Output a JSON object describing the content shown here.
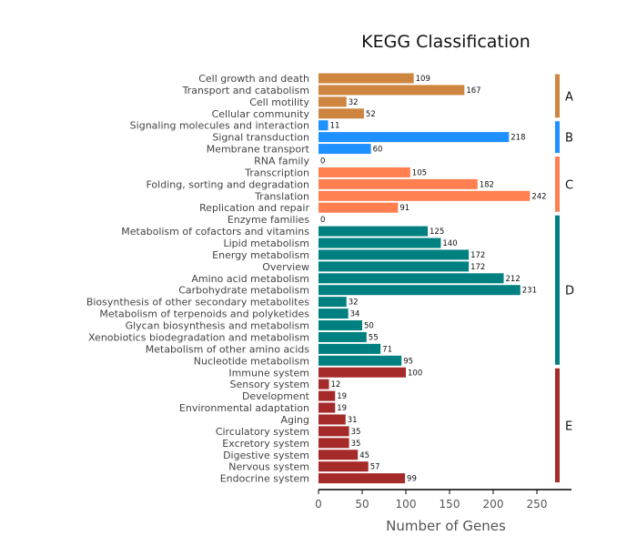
{
  "chart_data": {
    "type": "bar",
    "orientation": "horizontal",
    "title": "KEGG Classification",
    "xlabel": "Number of Genes",
    "ylabel": "",
    "xlim": [
      0,
      280
    ],
    "xticks": [
      0,
      50,
      100,
      150,
      200,
      250
    ],
    "grid": false,
    "groups": [
      {
        "name": "A",
        "color": "#CD853F",
        "categories": [
          "Cell growth and death",
          "Transport and catabolism",
          "Cell motility",
          "Cellular community"
        ],
        "values": [
          109,
          167,
          32,
          52
        ]
      },
      {
        "name": "B",
        "color": "#1E90FF",
        "categories": [
          "Signaling molecules and interaction",
          "Signal transduction",
          "Membrane transport"
        ],
        "values": [
          11,
          218,
          60
        ]
      },
      {
        "name": "C",
        "color": "#FF7F50",
        "categories": [
          "RNA family",
          "Transcription",
          "Folding, sorting and degradation",
          "Translation",
          "Replication and repair"
        ],
        "values": [
          0,
          105,
          182,
          242,
          91
        ]
      },
      {
        "name": "D",
        "color": "#008080",
        "categories": [
          "Enzyme families",
          "Metabolism of cofactors and vitamins",
          "Lipid metabolism",
          "Energy metabolism",
          "Overview",
          "Amino acid metabolism",
          "Carbohydrate metabolism",
          "Biosynthesis of other secondary metabolites",
          "Metabolism of terpenoids and polyketides",
          "Glycan biosynthesis and metabolism",
          "Xenobiotics biodegradation and metabolism",
          "Metabolism of other amino acids",
          "Nucleotide metabolism"
        ],
        "values": [
          0,
          125,
          140,
          172,
          172,
          212,
          231,
          32,
          34,
          50,
          55,
          71,
          95
        ]
      },
      {
        "name": "E",
        "color": "#A52A2A",
        "categories": [
          "Immune system",
          "Sensory system",
          "Development",
          "Environmental adaptation",
          "Aging",
          "Circulatory system",
          "Excretory system",
          "Digestive system",
          "Nervous system",
          "Endocrine system"
        ],
        "values": [
          100,
          12,
          19,
          19,
          31,
          35,
          35,
          45,
          57,
          99
        ]
      }
    ]
  }
}
